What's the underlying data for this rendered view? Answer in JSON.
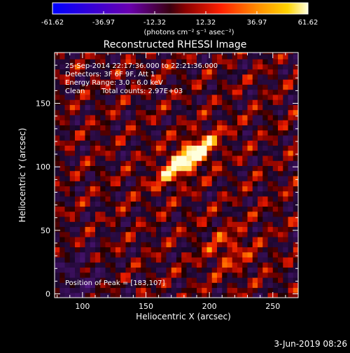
{
  "colorbar": {
    "tick_labels": [
      "-61.62",
      "-36.97",
      "-12.32",
      "12.32",
      "36.97",
      "61.62"
    ],
    "range": [
      -61.62,
      61.62
    ],
    "units": "(photons cm⁻² s⁻¹ asec⁻²)"
  },
  "chart_data": {
    "type": "heatmap",
    "title": "Reconstructed RHESSI Image",
    "xlabel": "Heliocentric X (arcsec)",
    "ylabel": "Heliocentric Y (arcsec)",
    "xlim": [
      78,
      270
    ],
    "ylim": [
      -3,
      190
    ],
    "xticks": [
      100,
      150,
      200,
      250
    ],
    "yticks": [
      0,
      50,
      100,
      150
    ],
    "xtick_labels": [
      "100",
      "150",
      "200",
      "250"
    ],
    "ytick_labels": [
      "0",
      "50",
      "100",
      "150"
    ],
    "peak": [
      183,
      107
    ],
    "colormap": "red-temperature",
    "annotations": {
      "time": "25-Sep-2014 22:17:36.000 to 22:21:36.000",
      "detectors": "Detectors: 3F 6F 9F, Att 1",
      "energy": "Energy Range: 3.0 - 6.0 keV",
      "method": "Clean",
      "counts": "Total counts: 2.97E+03",
      "peak_label": "Position of Peak = [183,107]"
    }
  },
  "footer": {
    "date": "3-Jun-2019 08:26"
  }
}
